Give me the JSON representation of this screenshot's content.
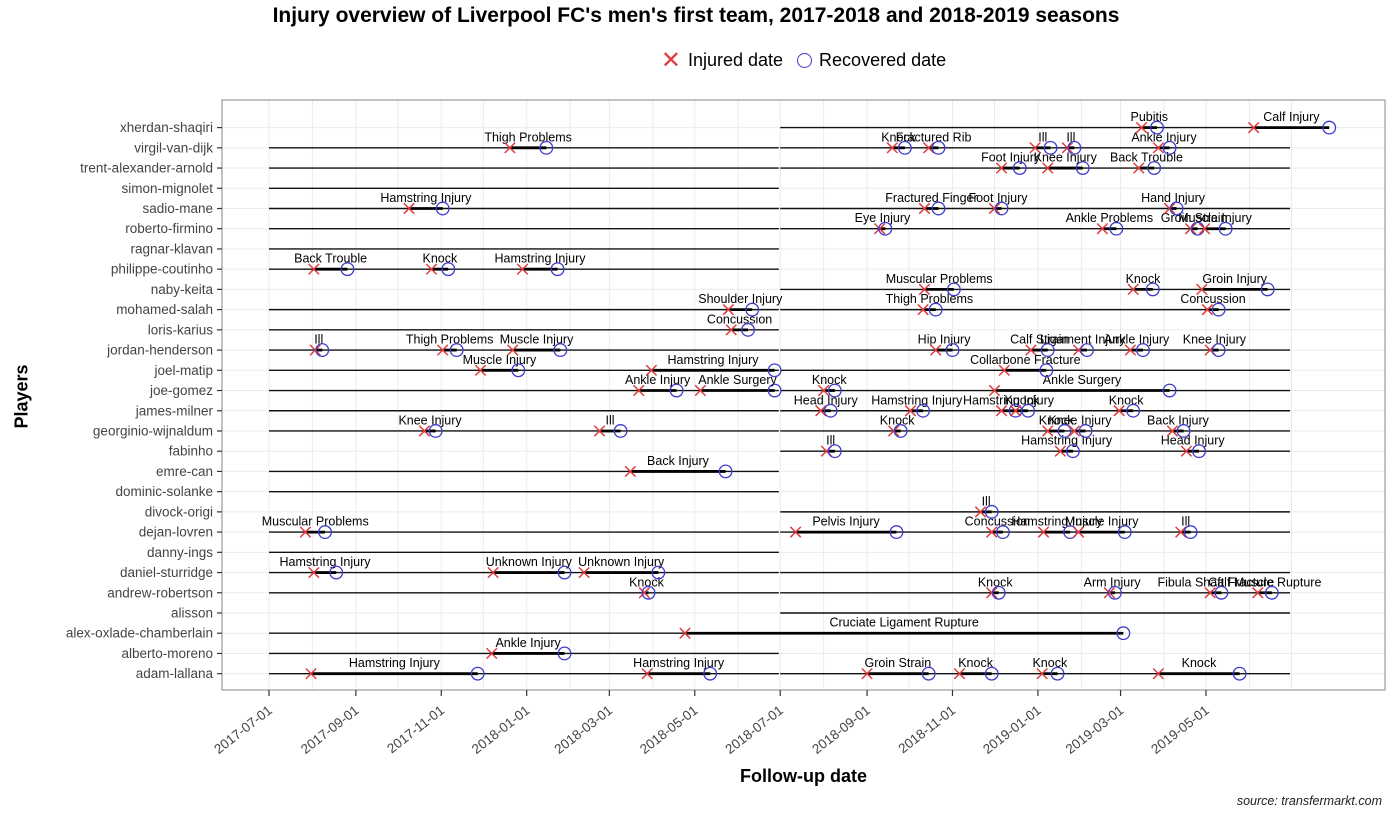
{
  "title": "Injury overview of Liverpool FC's men's first team, 2017-2018 and 2018-2019 seasons",
  "legend": {
    "injured_label": "Injured date",
    "recovered_label": "Recovered date"
  },
  "x_axis": {
    "label": "Follow-up date",
    "ticks": [
      "2017-07-01",
      "2017-09-01",
      "2017-11-01",
      "2018-01-01",
      "2018-03-01",
      "2018-05-01",
      "2018-07-01",
      "2018-09-01",
      "2018-11-01",
      "2019-01-01",
      "2019-03-01",
      "2019-05-01"
    ]
  },
  "y_axis": {
    "label": "Players"
  },
  "caption": "source: transfermarkt.com",
  "colors": {
    "injured_marker": "#e03c3c",
    "recovered_marker": "#3c3ccc",
    "timeline": "#111111",
    "injury_segment": "#000000",
    "grid": "#ebebeb",
    "panel_border": "#999999",
    "axis_text": "#444444",
    "tick": "#333333"
  },
  "chart_data": {
    "type": "gantt-timeline",
    "date_range": [
      "2017-07-01",
      "2019-07-01"
    ],
    "seasons": [
      {
        "name": "2017-2018",
        "start": "2017-07-01",
        "end": "2018-06-30"
      },
      {
        "name": "2018-2019",
        "start": "2018-07-01",
        "end": "2019-06-30"
      }
    ],
    "players": [
      {
        "name": "xherdan-shaqiri",
        "seasons": [
          2
        ],
        "injuries": [
          {
            "label": "Pubitis",
            "injured": "2019-03-16",
            "recovered": "2019-03-27"
          },
          {
            "label": "Calf Injury",
            "injured": "2019-06-04",
            "recovered": "2019-07-28"
          }
        ]
      },
      {
        "name": "virgil-van-dijk",
        "seasons": [
          1,
          2
        ],
        "injuries": [
          {
            "label": "Thigh Problems",
            "injured": "2017-12-20",
            "recovered": "2018-01-15"
          },
          {
            "label": "Knock",
            "injured": "2018-09-19",
            "recovered": "2018-09-28"
          },
          {
            "label": "Fractured Rib",
            "injured": "2018-10-15",
            "recovered": "2018-10-22"
          },
          {
            "label": "Ill",
            "injured": "2018-12-30",
            "recovered": "2019-01-10"
          },
          {
            "label": "Ill",
            "injured": "2019-01-22",
            "recovered": "2019-01-27"
          },
          {
            "label": "Ankle Injury",
            "injured": "2019-03-28",
            "recovered": "2019-04-05"
          }
        ]
      },
      {
        "name": "trent-alexander-arnold",
        "seasons": [
          1,
          2
        ],
        "injuries": [
          {
            "label": "Foot Injury",
            "injured": "2018-12-06",
            "recovered": "2018-12-19"
          },
          {
            "label": "Knee Injury",
            "injured": "2019-01-08",
            "recovered": "2019-02-02"
          },
          {
            "label": "Back Trouble",
            "injured": "2019-03-14",
            "recovered": "2019-03-25"
          }
        ]
      },
      {
        "name": "simon-mignolet",
        "seasons": [
          1
        ],
        "injuries": []
      },
      {
        "name": "sadio-mane",
        "seasons": [
          1,
          2
        ],
        "injuries": [
          {
            "label": "Hamstring Injury",
            "injured": "2017-10-09",
            "recovered": "2017-11-02"
          },
          {
            "label": "Fractured Finger",
            "injured": "2018-10-12",
            "recovered": "2018-10-22"
          },
          {
            "label": "Foot Injury",
            "injured": "2018-12-01",
            "recovered": "2018-12-06"
          },
          {
            "label": "Hand Injury",
            "injured": "2019-04-05",
            "recovered": "2019-04-10"
          }
        ]
      },
      {
        "name": "roberto-firmino",
        "seasons": [
          1,
          2
        ],
        "injuries": [
          {
            "label": "Eye Injury",
            "injured": "2018-09-10",
            "recovered": "2018-09-14"
          },
          {
            "label": "Ankle Problems",
            "injured": "2019-02-16",
            "recovered": "2019-02-26"
          },
          {
            "label": "Groin Strain",
            "injured": "2019-04-20",
            "recovered": "2019-04-25"
          },
          {
            "label": "Muscle Injury",
            "injured": "2019-04-30",
            "recovered": "2019-05-15"
          }
        ]
      },
      {
        "name": "ragnar-klavan",
        "seasons": [
          1
        ],
        "injuries": []
      },
      {
        "name": "philippe-coutinho",
        "seasons": [
          1
        ],
        "injuries": [
          {
            "label": "Back Trouble",
            "injured": "2017-08-02",
            "recovered": "2017-08-26"
          },
          {
            "label": "Knock",
            "injured": "2017-10-25",
            "recovered": "2017-11-06"
          },
          {
            "label": "Hamstring Injury",
            "injured": "2017-12-29",
            "recovered": "2018-01-23"
          }
        ]
      },
      {
        "name": "naby-keita",
        "seasons": [
          2
        ],
        "injuries": [
          {
            "label": "Muscular Problems",
            "injured": "2018-10-12",
            "recovered": "2018-11-02"
          },
          {
            "label": "Knock",
            "injured": "2019-03-10",
            "recovered": "2019-03-24"
          },
          {
            "label": "Groin Injury",
            "injured": "2019-04-28",
            "recovered": "2019-06-14"
          }
        ]
      },
      {
        "name": "mohamed-salah",
        "seasons": [
          1,
          2
        ],
        "injuries": [
          {
            "label": "Shoulder Injury",
            "injured": "2018-05-25",
            "recovered": "2018-06-11"
          },
          {
            "label": "Thigh Problems",
            "injured": "2018-10-11",
            "recovered": "2018-10-20"
          },
          {
            "label": "Concussion",
            "injured": "2019-05-02",
            "recovered": "2019-05-10"
          }
        ]
      },
      {
        "name": "loris-karius",
        "seasons": [
          1
        ],
        "injuries": [
          {
            "label": "Concussion",
            "injured": "2018-05-27",
            "recovered": "2018-06-08"
          }
        ]
      },
      {
        "name": "jordan-henderson",
        "seasons": [
          1,
          2
        ],
        "injuries": [
          {
            "label": "Ill",
            "injured": "2017-08-03",
            "recovered": "2017-08-08"
          },
          {
            "label": "Thigh Problems",
            "injured": "2017-11-02",
            "recovered": "2017-11-12"
          },
          {
            "label": "Muscle Injury",
            "injured": "2017-12-22",
            "recovered": "2018-01-25"
          },
          {
            "label": "Hip Injury",
            "injured": "2018-10-20",
            "recovered": "2018-11-01"
          },
          {
            "label": "Calf Strain",
            "injured": "2018-12-27",
            "recovered": "2019-01-08"
          },
          {
            "label": "Ligament Injury",
            "injured": "2019-01-30",
            "recovered": "2019-02-05"
          },
          {
            "label": "Ankle Injury",
            "injured": "2019-03-08",
            "recovered": "2019-03-17"
          },
          {
            "label": "Knee Injury",
            "injured": "2019-05-04",
            "recovered": "2019-05-10"
          }
        ]
      },
      {
        "name": "joel-matip",
        "seasons": [
          1,
          2
        ],
        "injuries": [
          {
            "label": "Muscle Injury",
            "injured": "2017-11-29",
            "recovered": "2017-12-26"
          },
          {
            "label": "Hamstring Injury",
            "injured": "2018-03-31",
            "recovered": "2018-06-27"
          },
          {
            "label": "Collarbone Fracture",
            "injured": "2018-12-08",
            "recovered": "2019-01-07"
          }
        ]
      },
      {
        "name": "joe-gomez",
        "seasons": [
          1,
          2
        ],
        "injuries": [
          {
            "label": "Ankle Injury",
            "injured": "2018-03-22",
            "recovered": "2018-04-18"
          },
          {
            "label": "Ankle Surgery",
            "injured": "2018-05-05",
            "recovered": "2018-06-27"
          },
          {
            "label": "Knock",
            "injured": "2018-08-01",
            "recovered": "2018-08-09"
          },
          {
            "label": "Ankle Surgery",
            "injured": "2018-12-01",
            "recovered": "2019-04-05"
          }
        ]
      },
      {
        "name": "james-milner",
        "seasons": [
          1,
          2
        ],
        "injuries": [
          {
            "label": "Head Injury",
            "injured": "2018-07-30",
            "recovered": "2018-08-06"
          },
          {
            "label": "Hamstring Injury",
            "injured": "2018-10-02",
            "recovered": "2018-10-11"
          },
          {
            "label": "Hamstring Injury",
            "injured": "2018-12-06",
            "recovered": "2018-12-16"
          },
          {
            "label": "Knock",
            "injured": "2018-12-16",
            "recovered": "2018-12-25"
          },
          {
            "label": "Knock",
            "injured": "2019-02-28",
            "recovered": "2019-03-10"
          }
        ]
      },
      {
        "name": "georginio-wijnaldum",
        "seasons": [
          1,
          2
        ],
        "injuries": [
          {
            "label": "Knee Injury",
            "injured": "2017-10-20",
            "recovered": "2017-10-28"
          },
          {
            "label": "Ill",
            "injured": "2018-02-22",
            "recovered": "2018-03-09"
          },
          {
            "label": "Knock",
            "injured": "2018-09-20",
            "recovered": "2018-09-25"
          },
          {
            "label": "Knock",
            "injured": "2019-01-08",
            "recovered": "2019-01-20"
          },
          {
            "label": "Knee Injury",
            "injured": "2019-01-27",
            "recovered": "2019-02-04"
          },
          {
            "label": "Back Injury",
            "injured": "2019-04-07",
            "recovered": "2019-04-15"
          }
        ]
      },
      {
        "name": "fabinho",
        "seasons": [
          2
        ],
        "injuries": [
          {
            "label": "Ill",
            "injured": "2018-08-03",
            "recovered": "2018-08-09"
          },
          {
            "label": "Hamstring Injury",
            "injured": "2019-01-17",
            "recovered": "2019-01-26"
          },
          {
            "label": "Head Injury",
            "injured": "2019-04-17",
            "recovered": "2019-04-26"
          }
        ]
      },
      {
        "name": "emre-can",
        "seasons": [
          1
        ],
        "injuries": [
          {
            "label": "Back Injury",
            "injured": "2018-03-16",
            "recovered": "2018-05-23"
          }
        ]
      },
      {
        "name": "dominic-solanke",
        "seasons": [
          1
        ],
        "injuries": []
      },
      {
        "name": "divock-origi",
        "seasons": [
          2
        ],
        "injuries": [
          {
            "label": "Ill",
            "injured": "2018-11-21",
            "recovered": "2018-11-29"
          }
        ]
      },
      {
        "name": "dejan-lovren",
        "seasons": [
          1,
          2
        ],
        "injuries": [
          {
            "label": "Muscular Problems",
            "injured": "2017-07-27",
            "recovered": "2017-08-10"
          },
          {
            "label": "Pelvis Injury",
            "injured": "2018-07-12",
            "recovered": "2018-09-22"
          },
          {
            "label": "Concussion",
            "injured": "2018-11-29",
            "recovered": "2018-12-07"
          },
          {
            "label": "Hamstring Injury",
            "injured": "2019-01-05",
            "recovered": "2019-01-24"
          },
          {
            "label": "Muscle Injury",
            "injured": "2019-01-30",
            "recovered": "2019-03-04"
          },
          {
            "label": "Ill",
            "injured": "2019-04-13",
            "recovered": "2019-04-20"
          }
        ]
      },
      {
        "name": "danny-ings",
        "seasons": [
          1
        ],
        "injuries": []
      },
      {
        "name": "daniel-sturridge",
        "seasons": [
          1,
          2
        ],
        "injuries": [
          {
            "label": "Hamstring Injury",
            "injured": "2017-08-02",
            "recovered": "2017-08-18"
          },
          {
            "label": "Unknown Injury",
            "injured": "2017-12-08",
            "recovered": "2018-01-28"
          },
          {
            "label": "Unknown Injury",
            "injured": "2018-02-11",
            "recovered": "2018-04-05"
          }
        ]
      },
      {
        "name": "andrew-robertson",
        "seasons": [
          1,
          2
        ],
        "injuries": [
          {
            "label": "Knock",
            "injured": "2018-03-26",
            "recovered": "2018-03-29"
          },
          {
            "label": "Knock",
            "injured": "2018-11-29",
            "recovered": "2018-12-04"
          },
          {
            "label": "Arm Injury",
            "injured": "2019-02-21",
            "recovered": "2019-02-25"
          },
          {
            "label": "Fibula Shaft Fracture",
            "injured": "2019-05-04",
            "recovered": "2019-05-12"
          },
          {
            "label": "Calf Muscle Rupture",
            "injured": "2019-06-07",
            "recovered": "2019-06-17"
          }
        ]
      },
      {
        "name": "alisson",
        "seasons": [
          2
        ],
        "injuries": []
      },
      {
        "name": "alex-oxlade-chamberlain",
        "seasons": [
          1
        ],
        "injuries": [
          {
            "label": "Cruciate Ligament Rupture",
            "injured": "2018-04-24",
            "recovered": "2019-03-03"
          }
        ]
      },
      {
        "name": "alberto-moreno",
        "seasons": [
          1
        ],
        "injuries": [
          {
            "label": "Ankle Injury",
            "injured": "2017-12-07",
            "recovered": "2018-01-28"
          }
        ]
      },
      {
        "name": "adam-lallana",
        "seasons": [
          1,
          2
        ],
        "injuries": [
          {
            "label": "Hamstring Injury",
            "injured": "2017-07-31",
            "recovered": "2017-11-27"
          },
          {
            "label": "Hamstring Injury",
            "injured": "2018-03-28",
            "recovered": "2018-05-12"
          },
          {
            "label": "Groin Strain",
            "injured": "2018-09-01",
            "recovered": "2018-10-15"
          },
          {
            "label": "Knock",
            "injured": "2018-11-06",
            "recovered": "2018-11-29"
          },
          {
            "label": "Knock",
            "injured": "2019-01-04",
            "recovered": "2019-01-15"
          },
          {
            "label": "Knock",
            "injured": "2019-03-28",
            "recovered": "2019-05-25"
          }
        ]
      }
    ]
  }
}
